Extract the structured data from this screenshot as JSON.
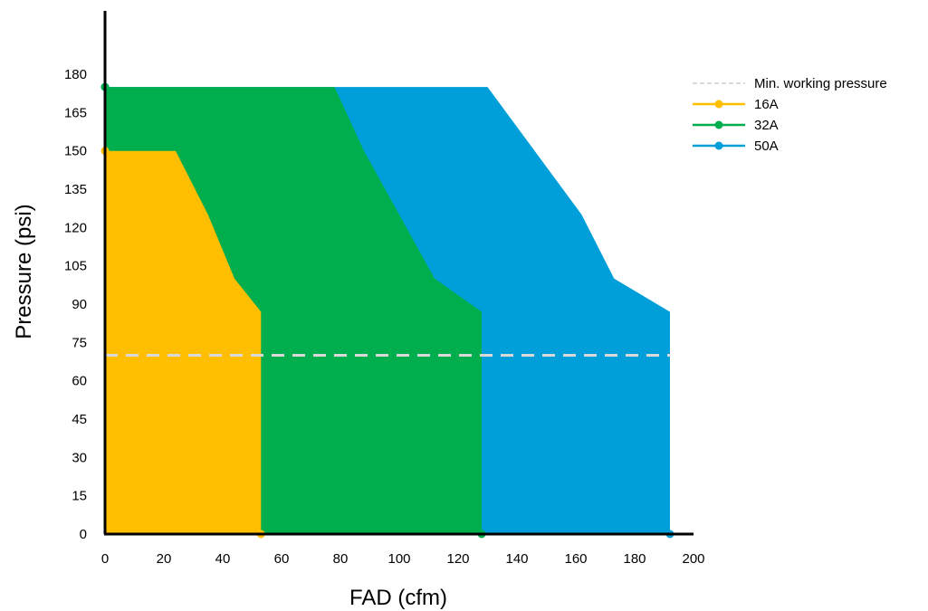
{
  "chart_data": {
    "type": "area",
    "title": "",
    "xlabel": "FAD (cfm)",
    "ylabel": "Pressure (psi)",
    "xlim": [
      0,
      200
    ],
    "ylim": [
      0,
      195
    ],
    "x_ticks": [
      0,
      20,
      40,
      60,
      80,
      100,
      120,
      140,
      160,
      180,
      200
    ],
    "y_ticks": [
      0,
      15,
      30,
      45,
      60,
      75,
      90,
      105,
      120,
      135,
      150,
      165,
      180
    ],
    "grid": false,
    "legend_position": "top-right",
    "reference_line": {
      "name": "Min. working pressure",
      "y": 70,
      "x_range": [
        0,
        192
      ],
      "color": "#d9d9d9",
      "style": "dashed"
    },
    "series": [
      {
        "name": "50A",
        "color": "#009fd9",
        "points": [
          [
            0,
            175
          ],
          [
            130,
            175
          ],
          [
            162,
            125
          ],
          [
            173,
            100
          ],
          [
            192,
            87
          ],
          [
            192,
            0
          ],
          [
            0,
            0
          ]
        ],
        "markers": [
          [
            0,
            175
          ],
          [
            192,
            0
          ]
        ]
      },
      {
        "name": "32A",
        "color": "#00ae4d",
        "points": [
          [
            0,
            175
          ],
          [
            78,
            175
          ],
          [
            88,
            150
          ],
          [
            112,
            100
          ],
          [
            128,
            87
          ],
          [
            128,
            0
          ],
          [
            0,
            0
          ]
        ],
        "markers": [
          [
            0,
            175
          ],
          [
            128,
            0
          ]
        ]
      },
      {
        "name": "16A",
        "color": "#ffbf00",
        "points": [
          [
            0,
            150
          ],
          [
            24,
            150
          ],
          [
            35,
            125
          ],
          [
            44,
            100
          ],
          [
            53,
            87
          ],
          [
            53,
            0
          ],
          [
            0,
            0
          ]
        ],
        "markers": [
          [
            0,
            150
          ],
          [
            53,
            0
          ]
        ]
      }
    ],
    "legend_order": [
      "Min. working pressure",
      "16A",
      "32A",
      "50A"
    ]
  }
}
